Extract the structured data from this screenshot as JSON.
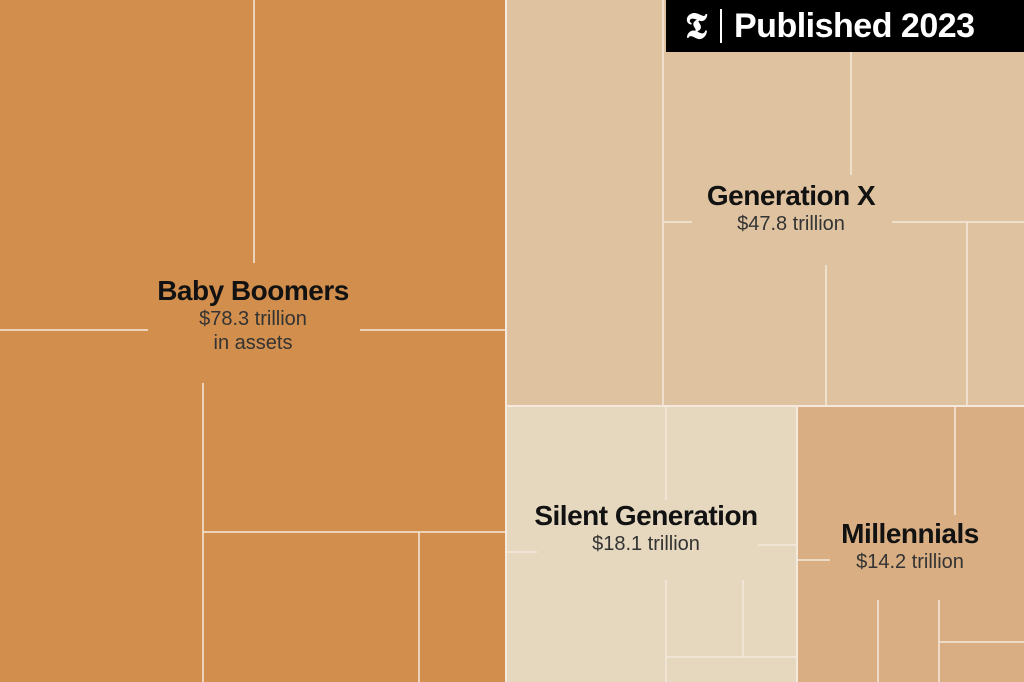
{
  "badge": {
    "logo_icon": "nyt-t-logo-icon",
    "text": "Published 2023"
  },
  "chart_data": {
    "type": "treemap",
    "unit": "trillion dollars",
    "series": [
      {
        "name": "Baby Boomers",
        "value": 78.3,
        "value_label": "$78.3 trillion",
        "subtitle": "in assets",
        "color": "#d28e4c"
      },
      {
        "name": "Generation X",
        "value": 47.8,
        "value_label": "$47.8 trillion",
        "subtitle": "",
        "color": "#dfc3a0"
      },
      {
        "name": "Silent Generation",
        "value": 18.1,
        "value_label": "$18.1 trillion",
        "subtitle": "",
        "color": "#e6d7bf"
      },
      {
        "name": "Millennials",
        "value": 14.2,
        "value_label": "$14.2 trillion",
        "subtitle": "",
        "color": "#d9ae83"
      }
    ],
    "divider_color": "#f4e9dc"
  }
}
